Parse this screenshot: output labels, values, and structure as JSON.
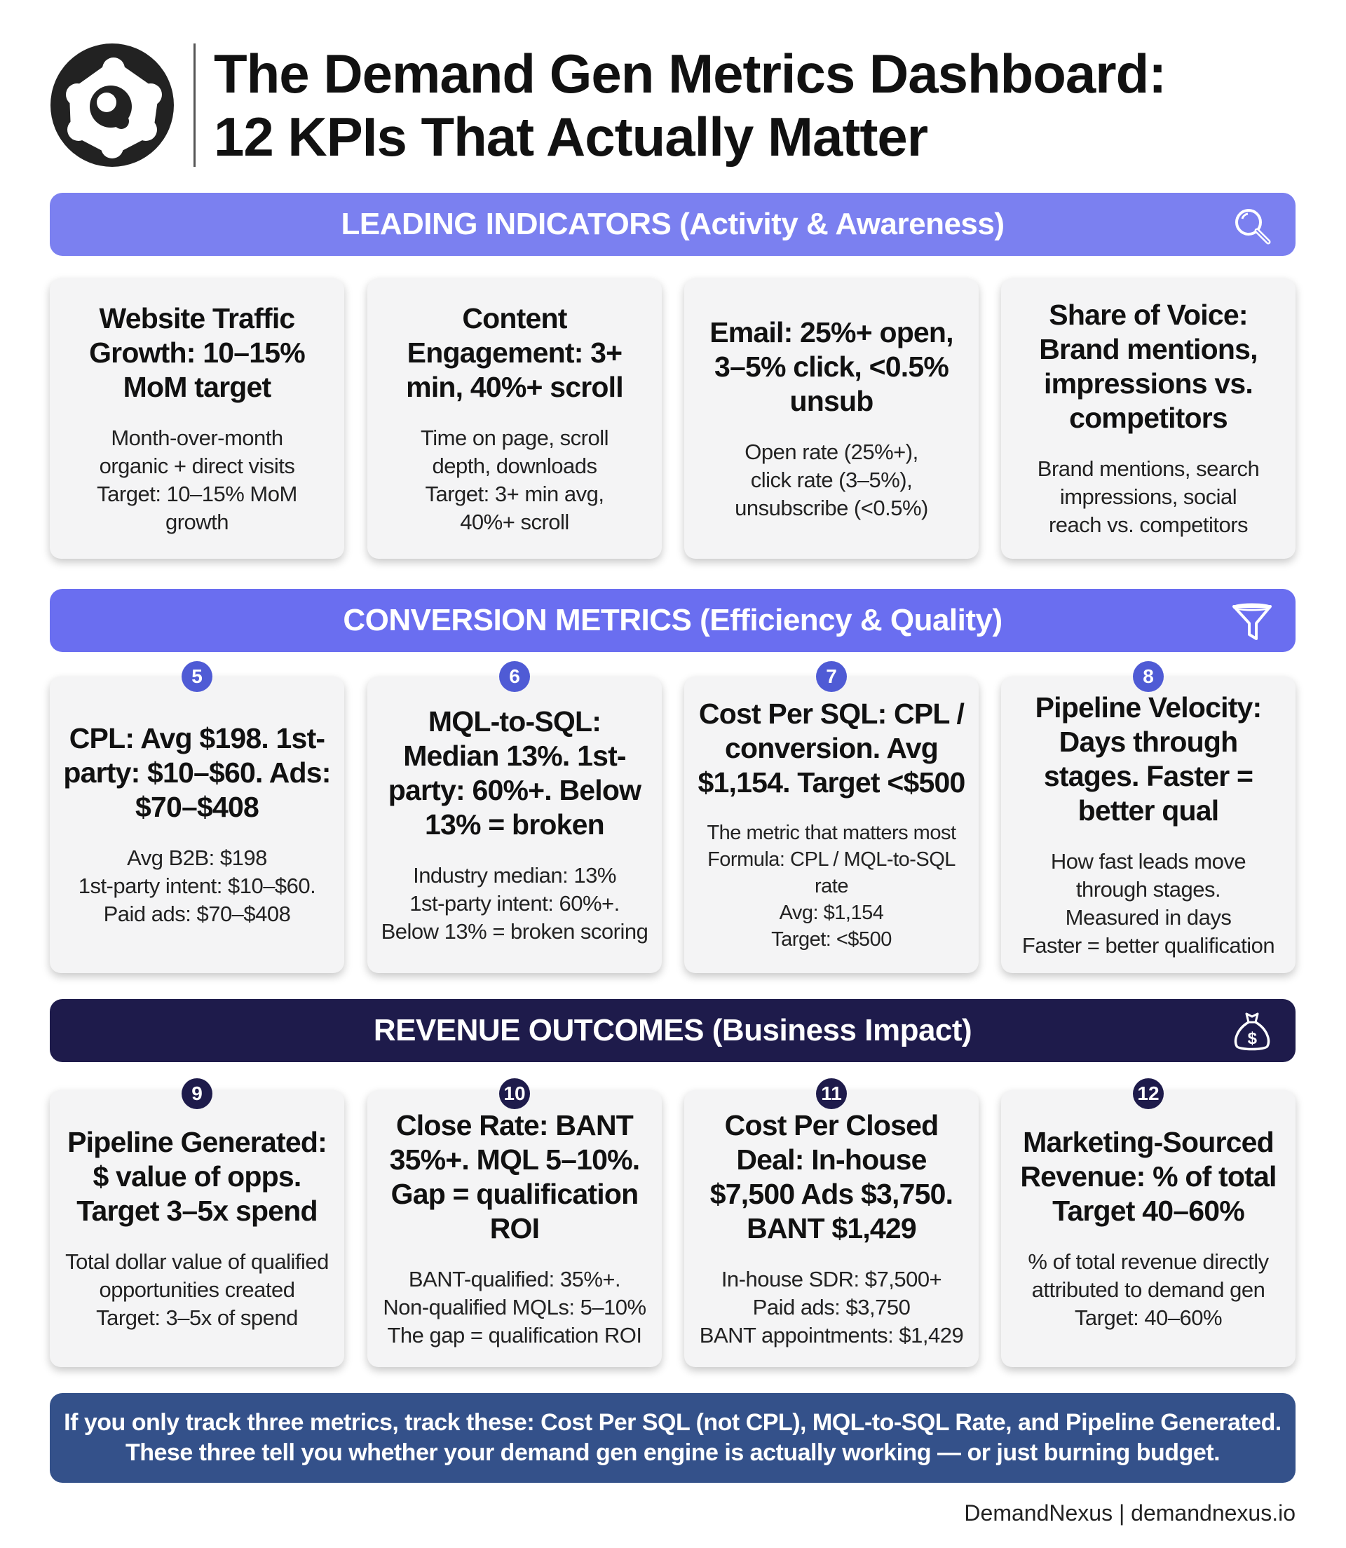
{
  "header": {
    "title_line1": "The Demand Gen Metrics Dashboard:",
    "title_line2": "12 KPIs That Actually Matter",
    "logo_icon": "molecule-logo"
  },
  "sections": [
    {
      "label": "LEADING INDICATORS (Activity & Awareness)",
      "icon": "magnifier-icon",
      "color": "#7b80f0",
      "cards": [
        {
          "title": "Website Traffic Growth: 10–15% MoM target",
          "body": [
            "Month-over-month",
            "organic + direct visits",
            "Target: 10–15% MoM",
            "growth"
          ]
        },
        {
          "title": "Content Engagement: 3+ min, 40%+ scroll",
          "body": [
            "Time on page, scroll",
            "depth, downloads",
            "Target: 3+ min avg,",
            "40%+ scroll"
          ]
        },
        {
          "title": "Email: 25%+ open, 3–5% click, <0.5% unsub",
          "body": [
            "Open rate (25%+),",
            "click rate (3–5%),",
            "unsubscribe (<0.5%)"
          ]
        },
        {
          "title": "Share of Voice: Brand mentions, impressions vs. competitors",
          "body": [
            "Brand mentions, search",
            "impressions, social",
            "reach vs. competitors"
          ]
        }
      ]
    },
    {
      "label": "CONVERSION METRICS (Efficiency & Quality)",
      "icon": "funnel-icon",
      "color": "#6a6ef0",
      "badge_color": "#4f5bd5",
      "cards": [
        {
          "num": "5",
          "title": "CPL: Avg $198. 1st-party: $10–$60. Ads: $70–$408",
          "body": [
            "Avg B2B: $198",
            "1st-party intent: $10–$60.",
            "Paid ads: $70–$408"
          ]
        },
        {
          "num": "6",
          "title": "MQL-to-SQL: Median 13%. 1st-party: 60%+. Below 13% = broken",
          "body": [
            "Industry median: 13%",
            "1st-party intent: 60%+.",
            "Below 13% = broken scoring"
          ]
        },
        {
          "num": "7",
          "title": "Cost Per SQL: CPL / conversion. Avg $1,154. Target <$500",
          "body": [
            "The metric that matters most",
            "Formula: CPL / MQL-to-SQL rate",
            "Avg: $1,154",
            "Target: <$500"
          ]
        },
        {
          "num": "8",
          "title": "Pipeline Velocity: Days through stages. Faster = better qual",
          "body": [
            "How fast leads move",
            "through stages.",
            "Measured in days",
            "Faster = better qualification"
          ]
        }
      ]
    },
    {
      "label": "REVENUE OUTCOMES (Business Impact)",
      "icon": "money-bag-icon",
      "color": "#1e1b4b",
      "badge_color": "#1e1b4b",
      "cards": [
        {
          "num": "9",
          "title": "Pipeline Generated: $ value of opps. Target 3–5x spend",
          "body": [
            "Total dollar value of qualified",
            "opportunities created",
            "Target: 3–5x of spend"
          ]
        },
        {
          "num": "10",
          "title": "Close Rate: BANT 35%+. MQL 5–10%. Gap = qualification ROI",
          "body": [
            "BANT-qualified: 35%+.",
            "Non-qualified MQLs: 5–10%",
            "The gap = qualification ROI"
          ]
        },
        {
          "num": "11",
          "title": "Cost Per Closed Deal: In-house $7,500 Ads $3,750. BANT $1,429",
          "body": [
            "In-house SDR: $7,500+",
            "Paid ads: $3,750",
            "BANT appointments: $1,429"
          ]
        },
        {
          "num": "12",
          "title": "Marketing-Sourced Revenue: % of total Target 40–60%",
          "body": [
            "% of total revenue directly",
            "attributed to demand gen",
            "Target: 40–60%"
          ]
        }
      ]
    }
  ],
  "footer": {
    "line1": "If you only track three metrics, track these: Cost Per SQL (not CPL), MQL-to-SQL Rate, and Pipeline Generated.",
    "line2": "These three tell you whether your demand gen engine is actually working — or just burning budget.",
    "color": "#34518a"
  },
  "credit": "DemandNexus | demandnexus.io"
}
